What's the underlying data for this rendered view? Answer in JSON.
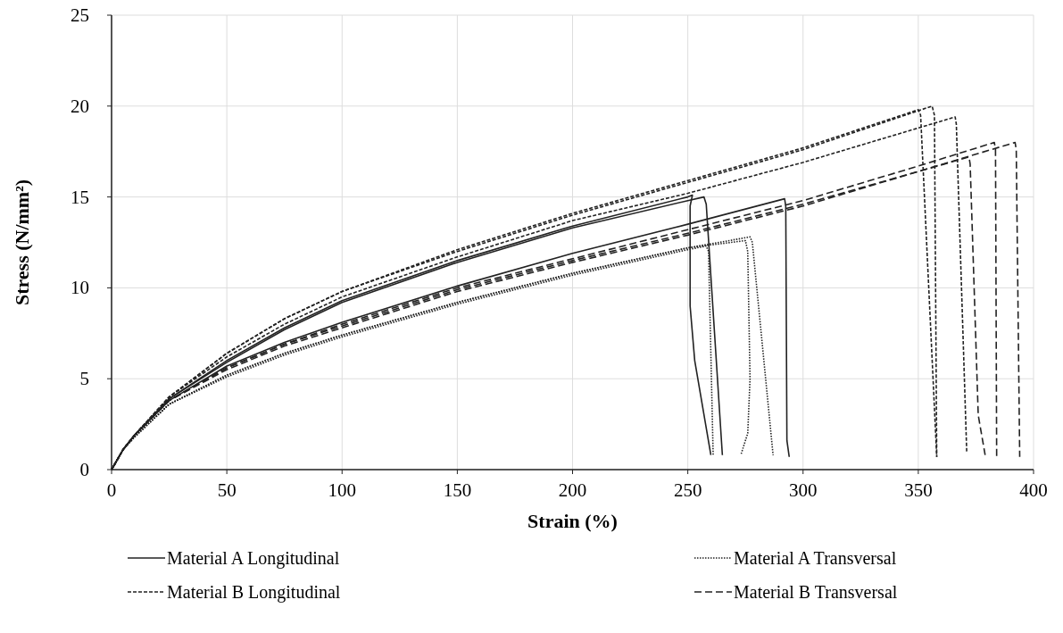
{
  "chart_data": {
    "type": "line",
    "xlabel": "Strain (%)",
    "ylabel": "Stress (N/mm²)",
    "xlim": [
      0,
      400
    ],
    "xticks": [
      0,
      50,
      100,
      150,
      200,
      250,
      300,
      350,
      400
    ],
    "ylim": [
      0,
      25
    ],
    "yticks": [
      0,
      5,
      10,
      15,
      20,
      25
    ],
    "grid": true,
    "legend": "bottom",
    "series": [
      {
        "name": "Material A Longitudinal",
        "color": "#222222",
        "line_style": "solid",
        "x": [
          0,
          5,
          10,
          25,
          50,
          75,
          100,
          150,
          200,
          250,
          252,
          251,
          251,
          253,
          260
        ],
        "values": [
          0,
          1.1,
          1.9,
          3.9,
          6.0,
          7.8,
          9.3,
          11.5,
          13.4,
          15.0,
          15.1,
          14.5,
          9,
          6,
          0.8
        ]
      },
      {
        "name": "Material A Transversal",
        "color": "#222222",
        "line_style": "dotted",
        "x": [
          0,
          5,
          10,
          25,
          50,
          75,
          100,
          150,
          200,
          250,
          277,
          278,
          287
        ],
        "values": [
          0,
          1.1,
          1.8,
          3.6,
          5.2,
          6.4,
          7.4,
          9.2,
          10.8,
          12.2,
          12.8,
          12.5,
          0.8
        ]
      },
      {
        "name": "Material B Longitudinal",
        "color": "#222222",
        "line_style": "dashed",
        "x": [
          0,
          5,
          10,
          25,
          50,
          75,
          100,
          150,
          200,
          250,
          300,
          350,
          351,
          358
        ],
        "values": [
          0,
          1.1,
          1.9,
          4.0,
          6.4,
          8.3,
          9.8,
          12.1,
          14.1,
          15.9,
          17.7,
          19.8,
          19.5,
          0.7
        ]
      },
      {
        "name": "Material B Transversal",
        "color": "#222222",
        "line_style": "longdash",
        "x": [
          0,
          5,
          10,
          25,
          50,
          75,
          100,
          150,
          200,
          250,
          300,
          350,
          372,
          372.5,
          376,
          379
        ],
        "values": [
          0,
          1.1,
          1.9,
          3.8,
          5.6,
          6.9,
          7.9,
          9.9,
          11.5,
          13.0,
          14.6,
          16.4,
          17.2,
          16.8,
          3,
          0.8
        ]
      },
      {
        "color": "#222222",
        "line_style": "solid",
        "x": [
          0,
          5,
          10,
          25,
          50,
          75,
          100,
          150,
          200,
          250,
          257,
          258,
          265
        ],
        "values": [
          0,
          1.1,
          1.9,
          3.9,
          5.9,
          7.7,
          9.2,
          11.4,
          13.3,
          14.8,
          15.0,
          14.6,
          0.8
        ]
      },
      {
        "color": "#222222",
        "line_style": "solid",
        "x": [
          0,
          5,
          10,
          25,
          50,
          75,
          100,
          150,
          200,
          250,
          292,
          292.5,
          293,
          294
        ],
        "values": [
          0,
          1.1,
          1.9,
          3.8,
          5.7,
          7.0,
          8.1,
          10.1,
          11.9,
          13.5,
          14.9,
          14.5,
          1.6,
          0.7
        ]
      },
      {
        "color": "#222222",
        "line_style": "dotted",
        "x": [
          0,
          5,
          10,
          25,
          50,
          75,
          100,
          150,
          200,
          250,
          258,
          259,
          261
        ],
        "values": [
          0,
          1.1,
          1.8,
          3.6,
          5.1,
          6.3,
          7.3,
          9.1,
          10.7,
          12.1,
          12.3,
          12.0,
          0.8
        ]
      },
      {
        "color": "#222222",
        "line_style": "dotted",
        "x": [
          0,
          5,
          10,
          25,
          50,
          75,
          100,
          150,
          200,
          250,
          275,
          276,
          277,
          276,
          273
        ],
        "values": [
          0,
          1.1,
          1.8,
          3.6,
          5.2,
          6.4,
          7.4,
          9.2,
          10.8,
          12.2,
          12.6,
          12,
          5,
          2,
          0.8
        ]
      },
      {
        "color": "#222222",
        "line_style": "dashed",
        "x": [
          0,
          5,
          10,
          25,
          50,
          75,
          100,
          150,
          200,
          250,
          300,
          356,
          357,
          358
        ],
        "values": [
          0,
          1.1,
          1.9,
          4.0,
          6.4,
          8.3,
          9.8,
          12.0,
          14.0,
          15.8,
          17.6,
          20.0,
          19.5,
          0.7
        ]
      },
      {
        "color": "#222222",
        "line_style": "dashed",
        "x": [
          0,
          5,
          10,
          25,
          50,
          75,
          100,
          150,
          200,
          250,
          300,
          366,
          366.5,
          371
        ],
        "values": [
          0,
          1.1,
          1.9,
          4.0,
          6.2,
          8.0,
          9.5,
          11.7,
          13.7,
          15.2,
          16.9,
          19.4,
          19.0,
          1.0
        ]
      },
      {
        "color": "#222222",
        "line_style": "longdash",
        "x": [
          0,
          5,
          10,
          25,
          50,
          75,
          100,
          150,
          200,
          250,
          300,
          350,
          383,
          383.5,
          384
        ],
        "values": [
          0,
          1.1,
          1.9,
          3.8,
          5.6,
          6.9,
          8.0,
          10.0,
          11.6,
          13.2,
          14.8,
          16.7,
          18.0,
          17.6,
          0.7
        ]
      },
      {
        "color": "#222222",
        "line_style": "longdash",
        "x": [
          0,
          5,
          10,
          25,
          50,
          75,
          100,
          150,
          200,
          250,
          300,
          350,
          392,
          392.5,
          394
        ],
        "values": [
          0,
          1.1,
          1.9,
          3.8,
          5.5,
          6.8,
          7.8,
          9.8,
          11.4,
          12.9,
          14.5,
          16.4,
          18.0,
          17.6,
          0.7
        ]
      }
    ]
  }
}
